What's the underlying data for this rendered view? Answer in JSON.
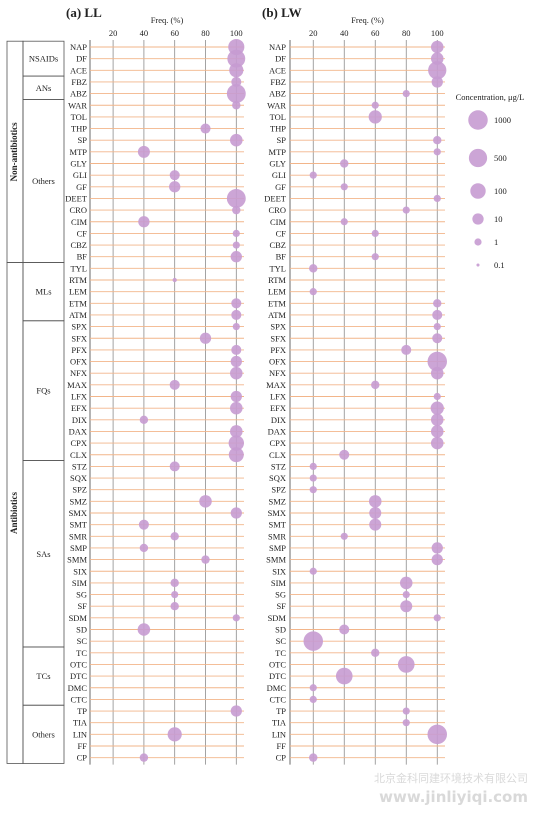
{
  "figure": {
    "panels": [
      {
        "letter": "(a)",
        "name": "LL"
      },
      {
        "letter": "(b)",
        "name": "LW"
      }
    ]
  },
  "chart_data": [
    {
      "type": "scatter",
      "title": "(a) LL",
      "xlabel": "Freq. (%)",
      "xlim": [
        5,
        105
      ],
      "xticks": [
        20,
        40,
        60,
        80,
        100
      ],
      "grid": true,
      "size_encodes": "Concentration, μg/L",
      "points": [
        {
          "compound": "NAP",
          "freq": 100,
          "conc": 150
        },
        {
          "compound": "DF",
          "freq": 100,
          "conc": 400
        },
        {
          "compound": "ACE",
          "freq": 100,
          "conc": 50
        },
        {
          "compound": "FBZ",
          "freq": 100,
          "conc": 5
        },
        {
          "compound": "ABZ",
          "freq": 100,
          "conc": 700
        },
        {
          "compound": "WAR",
          "freq": 100,
          "conc": 2
        },
        {
          "compound": "TOL",
          "freq": 0,
          "conc": 0
        },
        {
          "compound": "THP",
          "freq": 80,
          "conc": 5
        },
        {
          "compound": "SP",
          "freq": 100,
          "conc": 20
        },
        {
          "compound": "MTP",
          "freq": 40,
          "conc": 15
        },
        {
          "compound": "GLY",
          "freq": 0,
          "conc": 0
        },
        {
          "compound": "GLI",
          "freq": 60,
          "conc": 5
        },
        {
          "compound": "GF",
          "freq": 60,
          "conc": 10
        },
        {
          "compound": "DEET",
          "freq": 100,
          "conc": 700
        },
        {
          "compound": "CRO",
          "freq": 100,
          "conc": 2
        },
        {
          "compound": "CIM",
          "freq": 40,
          "conc": 10
        },
        {
          "compound": "CF",
          "freq": 100,
          "conc": 1
        },
        {
          "compound": "CBZ",
          "freq": 100,
          "conc": 1
        },
        {
          "compound": "BF",
          "freq": 100,
          "conc": 10
        },
        {
          "compound": "TYL",
          "freq": 0,
          "conc": 0
        },
        {
          "compound": "RTM",
          "freq": 60,
          "conc": 0.2
        },
        {
          "compound": "LEM",
          "freq": 0,
          "conc": 0
        },
        {
          "compound": "ETM",
          "freq": 100,
          "conc": 5
        },
        {
          "compound": "ATM",
          "freq": 100,
          "conc": 5
        },
        {
          "compound": "SPX",
          "freq": 100,
          "conc": 1
        },
        {
          "compound": "SFX",
          "freq": 80,
          "conc": 10
        },
        {
          "compound": "PFX",
          "freq": 100,
          "conc": 5
        },
        {
          "compound": "OFX",
          "freq": 100,
          "conc": 10
        },
        {
          "compound": "NFX",
          "freq": 100,
          "conc": 20
        },
        {
          "compound": "MAX",
          "freq": 60,
          "conc": 5
        },
        {
          "compound": "LFX",
          "freq": 100,
          "conc": 10
        },
        {
          "compound": "EFX",
          "freq": 100,
          "conc": 20
        },
        {
          "compound": "DIX",
          "freq": 40,
          "conc": 2
        },
        {
          "compound": "DAX",
          "freq": 100,
          "conc": 20
        },
        {
          "compound": "CPX",
          "freq": 100,
          "conc": 100
        },
        {
          "compound": "CLX",
          "freq": 100,
          "conc": 80
        },
        {
          "compound": "STZ",
          "freq": 60,
          "conc": 5
        },
        {
          "compound": "SQX",
          "freq": 0,
          "conc": 0
        },
        {
          "compound": "SPZ",
          "freq": 0,
          "conc": 0
        },
        {
          "compound": "SMZ",
          "freq": 80,
          "conc": 20
        },
        {
          "compound": "SMX",
          "freq": 100,
          "conc": 10
        },
        {
          "compound": "SMT",
          "freq": 40,
          "conc": 5
        },
        {
          "compound": "SMR",
          "freq": 60,
          "conc": 2
        },
        {
          "compound": "SMP",
          "freq": 40,
          "conc": 2
        },
        {
          "compound": "SMM",
          "freq": 80,
          "conc": 2
        },
        {
          "compound": "SIX",
          "freq": 0,
          "conc": 0
        },
        {
          "compound": "SIM",
          "freq": 60,
          "conc": 2
        },
        {
          "compound": "SG",
          "freq": 60,
          "conc": 1
        },
        {
          "compound": "SF",
          "freq": 60,
          "conc": 2
        },
        {
          "compound": "SDM",
          "freq": 100,
          "conc": 1
        },
        {
          "compound": "SD",
          "freq": 40,
          "conc": 20
        },
        {
          "compound": "SC",
          "freq": 0,
          "conc": 0
        },
        {
          "compound": "TC",
          "freq": 0,
          "conc": 0
        },
        {
          "compound": "OTC",
          "freq": 0,
          "conc": 0
        },
        {
          "compound": "DTC",
          "freq": 0,
          "conc": 0
        },
        {
          "compound": "DMC",
          "freq": 0,
          "conc": 0
        },
        {
          "compound": "CTC",
          "freq": 0,
          "conc": 0
        },
        {
          "compound": "TP",
          "freq": 100,
          "conc": 10
        },
        {
          "compound": "TIA",
          "freq": 0,
          "conc": 0
        },
        {
          "compound": "LIN",
          "freq": 60,
          "conc": 50
        },
        {
          "compound": "FF",
          "freq": 0,
          "conc": 0
        },
        {
          "compound": "CP",
          "freq": 40,
          "conc": 2
        }
      ]
    },
    {
      "type": "scatter",
      "title": "(b) LW",
      "xlabel": "Freq. (%)",
      "xlim": [
        5,
        105
      ],
      "xticks": [
        20,
        40,
        60,
        80,
        100
      ],
      "grid": true,
      "size_encodes": "Concentration, μg/L",
      "points": [
        {
          "compound": "NAP",
          "freq": 100,
          "conc": 20
        },
        {
          "compound": "DF",
          "freq": 100,
          "conc": 20
        },
        {
          "compound": "ACE",
          "freq": 100,
          "conc": 500
        },
        {
          "compound": "FBZ",
          "freq": 100,
          "conc": 10
        },
        {
          "compound": "ABZ",
          "freq": 80,
          "conc": 1
        },
        {
          "compound": "WAR",
          "freq": 60,
          "conc": 1
        },
        {
          "compound": "TOL",
          "freq": 60,
          "conc": 30
        },
        {
          "compound": "THP",
          "freq": 0,
          "conc": 0
        },
        {
          "compound": "SP",
          "freq": 100,
          "conc": 2
        },
        {
          "compound": "MTP",
          "freq": 100,
          "conc": 1
        },
        {
          "compound": "GLY",
          "freq": 40,
          "conc": 2
        },
        {
          "compound": "GLI",
          "freq": 20,
          "conc": 1
        },
        {
          "compound": "GF",
          "freq": 40,
          "conc": 1
        },
        {
          "compound": "DEET",
          "freq": 100,
          "conc": 1
        },
        {
          "compound": "CRO",
          "freq": 80,
          "conc": 1
        },
        {
          "compound": "CIM",
          "freq": 40,
          "conc": 1
        },
        {
          "compound": "CF",
          "freq": 60,
          "conc": 1
        },
        {
          "compound": "CBZ",
          "freq": 0,
          "conc": 0
        },
        {
          "compound": "BF",
          "freq": 60,
          "conc": 1
        },
        {
          "compound": "TYL",
          "freq": 20,
          "conc": 2
        },
        {
          "compound": "RTM",
          "freq": 0,
          "conc": 0
        },
        {
          "compound": "LEM",
          "freq": 20,
          "conc": 1
        },
        {
          "compound": "ETM",
          "freq": 100,
          "conc": 2
        },
        {
          "compound": "ATM",
          "freq": 100,
          "conc": 5
        },
        {
          "compound": "SPX",
          "freq": 100,
          "conc": 1
        },
        {
          "compound": "SFX",
          "freq": 100,
          "conc": 5
        },
        {
          "compound": "PFX",
          "freq": 80,
          "conc": 5
        },
        {
          "compound": "OFX",
          "freq": 100,
          "conc": 1000
        },
        {
          "compound": "NFX",
          "freq": 100,
          "conc": 20
        },
        {
          "compound": "MAX",
          "freq": 60,
          "conc": 2
        },
        {
          "compound": "LFX",
          "freq": 100,
          "conc": 1
        },
        {
          "compound": "EFX",
          "freq": 100,
          "conc": 30
        },
        {
          "compound": "DIX",
          "freq": 100,
          "conc": 20
        },
        {
          "compound": "DAX",
          "freq": 100,
          "conc": 20
        },
        {
          "compound": "CPX",
          "freq": 100,
          "conc": 20
        },
        {
          "compound": "CLX",
          "freq": 40,
          "conc": 5
        },
        {
          "compound": "STZ",
          "freq": 20,
          "conc": 1
        },
        {
          "compound": "SQX",
          "freq": 20,
          "conc": 1
        },
        {
          "compound": "SPZ",
          "freq": 20,
          "conc": 1
        },
        {
          "compound": "SMZ",
          "freq": 60,
          "conc": 20
        },
        {
          "compound": "SMX",
          "freq": 60,
          "conc": 15
        },
        {
          "compound": "SMT",
          "freq": 60,
          "conc": 15
        },
        {
          "compound": "SMR",
          "freq": 40,
          "conc": 1
        },
        {
          "compound": "SMP",
          "freq": 100,
          "conc": 10
        },
        {
          "compound": "SMM",
          "freq": 100,
          "conc": 10
        },
        {
          "compound": "SIX",
          "freq": 20,
          "conc": 1
        },
        {
          "compound": "SIM",
          "freq": 80,
          "conc": 20
        },
        {
          "compound": "SG",
          "freq": 80,
          "conc": 1
        },
        {
          "compound": "SF",
          "freq": 80,
          "conc": 15
        },
        {
          "compound": "SDM",
          "freq": 100,
          "conc": 1
        },
        {
          "compound": "SD",
          "freq": 40,
          "conc": 5
        },
        {
          "compound": "SC",
          "freq": 20,
          "conc": 1000
        },
        {
          "compound": "TC",
          "freq": 60,
          "conc": 2
        },
        {
          "compound": "OTC",
          "freq": 80,
          "conc": 200
        },
        {
          "compound": "DTC",
          "freq": 40,
          "conc": 200
        },
        {
          "compound": "DMC",
          "freq": 20,
          "conc": 1
        },
        {
          "compound": "CTC",
          "freq": 20,
          "conc": 1
        },
        {
          "compound": "TP",
          "freq": 80,
          "conc": 1
        },
        {
          "compound": "TIA",
          "freq": 80,
          "conc": 1
        },
        {
          "compound": "LIN",
          "freq": 100,
          "conc": 1000
        },
        {
          "compound": "FF",
          "freq": 0,
          "conc": 0
        },
        {
          "compound": "CP",
          "freq": 20,
          "conc": 2
        }
      ]
    }
  ],
  "groups": {
    "outer": [
      {
        "label": "Non-antibiotics",
        "first": "NAP",
        "last": "BF"
      },
      {
        "label": "Antibiotics",
        "first": "TYL",
        "last": "CP"
      }
    ],
    "inner": [
      {
        "label": "NSAIDs",
        "first": "NAP",
        "last": "ACE"
      },
      {
        "label": "ANs",
        "first": "FBZ",
        "last": "ABZ"
      },
      {
        "label": "Others",
        "first": "WAR",
        "last": "BF"
      },
      {
        "label": "MLs",
        "first": "TYL",
        "last": "ATM"
      },
      {
        "label": "FQs",
        "first": "SPX",
        "last": "CLX"
      },
      {
        "label": "SAs",
        "first": "STZ",
        "last": "SC"
      },
      {
        "label": "TCs",
        "first": "TC",
        "last": "CTC"
      },
      {
        "label": "Others",
        "first": "TP",
        "last": "CP"
      }
    ]
  },
  "legend": {
    "title": "Concentration, μg/L",
    "items": [
      {
        "label": "1000",
        "value": 1000
      },
      {
        "label": "500",
        "value": 500
      },
      {
        "label": "100",
        "value": 100
      },
      {
        "label": "10",
        "value": 10
      },
      {
        "label": "1",
        "value": 1
      },
      {
        "label": "0.1",
        "value": 0.1
      }
    ]
  },
  "colors": {
    "bubble": "#c79bd2",
    "stem": "#f2b58a",
    "grid": "#8c8c8c",
    "text": "#222222"
  },
  "watermark": {
    "line1": "北京金科同建环境技术有限公司",
    "line2": "www.jinliyiqi.com"
  }
}
